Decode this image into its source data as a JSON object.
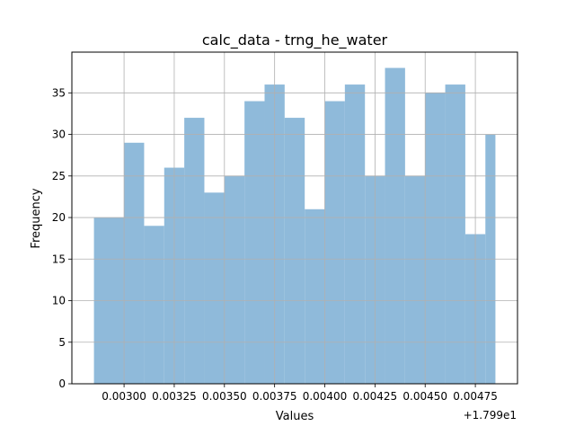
{
  "chart_data": {
    "type": "bar",
    "title": "calc_data - trng_he_water",
    "xlabel": "Values",
    "ylabel": "Frequency",
    "x_offset_label": "+1.799e1",
    "bin_edges": [
      0.00285,
      0.003,
      0.0031,
      0.0032,
      0.0033,
      0.0034,
      0.0035,
      0.0036,
      0.0037,
      0.0038,
      0.0039,
      0.004,
      0.0041,
      0.0042,
      0.0043,
      0.0044,
      0.0045,
      0.0046,
      0.0047,
      0.0048,
      0.00485
    ],
    "values": [
      20,
      29,
      19,
      26,
      32,
      23,
      25,
      34,
      36,
      32,
      21,
      34,
      36,
      25,
      38,
      25,
      35,
      36,
      18,
      30
    ],
    "xlim": [
      0.00274,
      0.00496
    ],
    "ylim": [
      0,
      39.9
    ],
    "xticks": [
      0.003,
      0.00325,
      0.0035,
      0.00375,
      0.004,
      0.00425,
      0.0045,
      0.00475
    ],
    "xtick_labels": [
      "0.00300",
      "0.00325",
      "0.00350",
      "0.00375",
      "0.00400",
      "0.00425",
      "0.00450",
      "0.00475"
    ],
    "yticks": [
      0,
      5,
      10,
      15,
      20,
      25,
      30,
      35
    ],
    "ytick_labels": [
      "0",
      "5",
      "10",
      "15",
      "20",
      "25",
      "30",
      "35"
    ],
    "grid": true,
    "colors": {
      "bar": "#8fbada",
      "grid": "#b0b0b0",
      "axis": "#000000"
    }
  }
}
